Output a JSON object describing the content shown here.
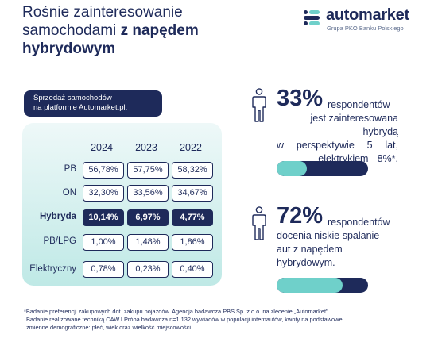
{
  "title": {
    "line1": "Rośnie zainteresowanie",
    "line2_normal": "samochodami ",
    "line2_bold": "z napędem",
    "line3_bold": "hybrydowym"
  },
  "logo": {
    "name": "automarket",
    "subtitle": "Grupa PKO Banku Polskiego",
    "colors": {
      "navy": "#1e2a5a",
      "teal": "#6fd0ca"
    }
  },
  "sales_label": {
    "line1": "Sprzedaż samochodów",
    "line2": "na platformie Automarket.pl:"
  },
  "table": {
    "years": [
      "2024",
      "2023",
      "2022"
    ],
    "rows": [
      {
        "label": "PB",
        "values": [
          "56,78%",
          "57,75%",
          "58,32%"
        ],
        "highlight": false
      },
      {
        "label": "ON",
        "values": [
          "32,30%",
          "33,56%",
          "34,67%"
        ],
        "highlight": false
      },
      {
        "label": "Hybryda",
        "values": [
          "10,14%",
          "6,97%",
          "4,77%"
        ],
        "highlight": true
      },
      {
        "label": "PB/LPG",
        "values": [
          "1,00%",
          "1,48%",
          "1,86%"
        ],
        "highlight": false
      },
      {
        "label": "Elektryczny",
        "values": [
          "0,78%",
          "0,23%",
          "0,40%"
        ],
        "highlight": false
      }
    ]
  },
  "stats": [
    {
      "value": "33%",
      "word": "respondentów",
      "line2": "jest zainteresowana hybrydą",
      "line3": "w perspektywie 5 lat,",
      "line4": "elektrykiem - 8%*.",
      "bar_fraction": 0.33
    },
    {
      "value": "72%",
      "word": "respondentów",
      "line2": "docenia niskie spalanie",
      "line3": "aut z napędem",
      "line4": "hybrydowym.",
      "bar_fraction": 0.72
    }
  ],
  "footnote": {
    "line1": "*Badanie preferencji zakupowych dot. zakupu pojazdów. Agencja badawcza PBS Sp. z o.o. na zlecenie „Automarket\".",
    "line2": "Badanie realizowane techniką CAW.I Próba badawcza n=1 132 wywiadów w populacji internautów, kwoty na podstawowe",
    "line3": "zmienne demograficzne: płeć, wiek oraz wielkość miejscowości."
  }
}
